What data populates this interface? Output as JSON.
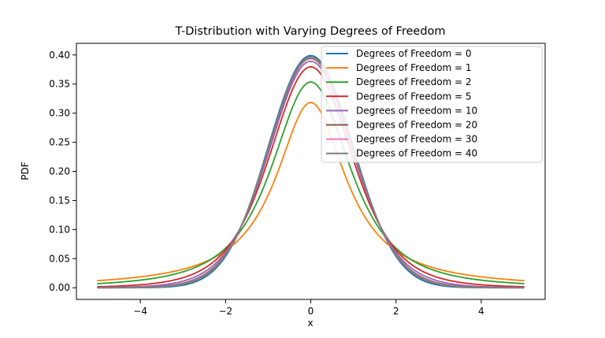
{
  "chart_data": {
    "type": "line",
    "title": "T-Distribution with Varying Degrees of Freedom",
    "xlabel": "x",
    "ylabel": "PDF",
    "xlim": [
      -5.5,
      5.5
    ],
    "ylim": [
      -0.02,
      0.42
    ],
    "x_range": [
      -5,
      5
    ],
    "x_ticks": [
      -4,
      -2,
      0,
      2,
      4
    ],
    "x_tick_labels": [
      "−4",
      "−2",
      "0",
      "2",
      "4"
    ],
    "y_ticks": [
      0.0,
      0.05,
      0.1,
      0.15,
      0.2,
      0.25,
      0.3,
      0.35,
      0.4
    ],
    "y_tick_labels": [
      "0.00",
      "0.05",
      "0.10",
      "0.15",
      "0.20",
      "0.25",
      "0.30",
      "0.35",
      "0.40"
    ],
    "grid": false,
    "legend_position": "top-right",
    "distribution": "Student t probability density function",
    "series": [
      {
        "name": "Degrees of Freedom = 0",
        "df": 0,
        "peak": 0.399,
        "color": "#1f77b4"
      },
      {
        "name": "Degrees of Freedom = 1",
        "df": 1,
        "peak": 0.318,
        "color": "#ff7f0e"
      },
      {
        "name": "Degrees of Freedom = 2",
        "df": 2,
        "peak": 0.354,
        "color": "#2ca02c"
      },
      {
        "name": "Degrees of Freedom = 5",
        "df": 5,
        "peak": 0.38,
        "color": "#d62728"
      },
      {
        "name": "Degrees of Freedom = 10",
        "df": 10,
        "peak": 0.389,
        "color": "#9467bd"
      },
      {
        "name": "Degrees of Freedom = 20",
        "df": 20,
        "peak": 0.394,
        "color": "#8c564b"
      },
      {
        "name": "Degrees of Freedom = 30",
        "df": 30,
        "peak": 0.396,
        "color": "#e377c2"
      },
      {
        "name": "Degrees of Freedom = 40",
        "df": 40,
        "peak": 0.397,
        "color": "#7f7f7f"
      }
    ]
  }
}
